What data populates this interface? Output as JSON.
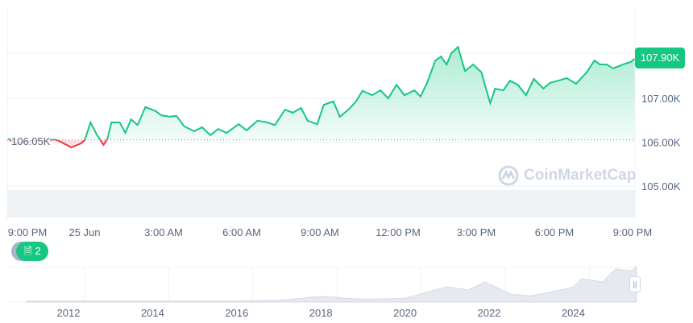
{
  "chart_data": {
    "type": "area",
    "y_ticks": [
      "107.00K",
      "106.00K",
      "105.00K"
    ],
    "ylim": [
      104.6,
      108.4
    ],
    "x_ticks": [
      "9:00 PM",
      "25 Jun",
      "3:00 AM",
      "6:00 AM",
      "9:00 AM",
      "12:00 PM",
      "3:00 PM",
      "6:00 PM",
      "9:00 PM"
    ],
    "baseline": 106.05,
    "baseline_label": "106.05K",
    "current_label": "107.90K",
    "colors": {
      "up": "#16c784",
      "down": "#ea3943"
    },
    "series": [
      [
        "21:02",
        106.08
      ],
      [
        "21:20",
        105.97
      ],
      [
        "21:58",
        106.03
      ],
      [
        "22:50",
        106.06
      ],
      [
        "23:02",
        106.01
      ],
      [
        "23:27",
        105.88
      ],
      [
        "23:49",
        105.97
      ],
      [
        "23:58",
        106.05
      ],
      [
        "00:11",
        106.45
      ],
      [
        "00:26",
        106.16
      ],
      [
        "00:41",
        105.94
      ],
      [
        "00:50",
        106.08
      ],
      [
        "00:59",
        106.45
      ],
      [
        "01:18",
        106.45
      ],
      [
        "01:31",
        106.21
      ],
      [
        "01:44",
        106.52
      ],
      [
        "01:59",
        106.39
      ],
      [
        "02:17",
        106.8
      ],
      [
        "02:40",
        106.71
      ],
      [
        "02:54",
        106.61
      ],
      [
        "03:13",
        106.58
      ],
      [
        "03:28",
        106.6
      ],
      [
        "03:46",
        106.36
      ],
      [
        "04:09",
        106.25
      ],
      [
        "04:27",
        106.34
      ],
      [
        "04:46",
        106.16
      ],
      [
        "05:04",
        106.3
      ],
      [
        "05:23",
        106.21
      ],
      [
        "05:51",
        106.41
      ],
      [
        "06:09",
        106.27
      ],
      [
        "06:34",
        106.49
      ],
      [
        "06:56",
        106.45
      ],
      [
        "07:14",
        106.39
      ],
      [
        "07:37",
        106.74
      ],
      [
        "07:55",
        106.67
      ],
      [
        "08:14",
        106.78
      ],
      [
        "08:29",
        106.49
      ],
      [
        "08:51",
        106.41
      ],
      [
        "09:06",
        106.85
      ],
      [
        "09:28",
        106.93
      ],
      [
        "09:43",
        106.58
      ],
      [
        "10:05",
        106.76
      ],
      [
        "10:20",
        106.93
      ],
      [
        "10:35",
        107.17
      ],
      [
        "10:57",
        107.07
      ],
      [
        "11:16",
        107.18
      ],
      [
        "11:34",
        107.0
      ],
      [
        "11:53",
        107.31
      ],
      [
        "12:11",
        107.07
      ],
      [
        "12:34",
        107.18
      ],
      [
        "12:48",
        107.04
      ],
      [
        "13:03",
        107.35
      ],
      [
        "13:22",
        107.86
      ],
      [
        "13:35",
        107.95
      ],
      [
        "13:48",
        107.77
      ],
      [
        "13:59",
        108.03
      ],
      [
        "14:14",
        108.17
      ],
      [
        "14:30",
        107.62
      ],
      [
        "14:49",
        107.77
      ],
      [
        "15:08",
        107.59
      ],
      [
        "15:17",
        107.26
      ],
      [
        "15:28",
        106.89
      ],
      [
        "15:39",
        107.22
      ],
      [
        "15:58",
        107.18
      ],
      [
        "16:13",
        107.4
      ],
      [
        "16:31",
        107.31
      ],
      [
        "16:50",
        107.07
      ],
      [
        "17:08",
        107.44
      ],
      [
        "17:30",
        107.22
      ],
      [
        "17:45",
        107.35
      ],
      [
        "18:04",
        107.4
      ],
      [
        "18:23",
        107.46
      ],
      [
        "18:45",
        107.33
      ],
      [
        "19:09",
        107.59
      ],
      [
        "19:27",
        107.86
      ],
      [
        "19:40",
        107.77
      ],
      [
        "19:55",
        107.77
      ],
      [
        "20:10",
        107.68
      ],
      [
        "20:32",
        107.77
      ],
      [
        "20:51",
        107.83
      ],
      [
        "20:59",
        107.9
      ]
    ],
    "navigator": {
      "x_ticks": [
        "2012",
        "2014",
        "2016",
        "2018",
        "2020",
        "2022",
        "2024"
      ],
      "series": [
        [
          2011,
          0
        ],
        [
          2013,
          1
        ],
        [
          2014,
          0.5
        ],
        [
          2016,
          0.5
        ],
        [
          2017,
          3
        ],
        [
          2018,
          15
        ],
        [
          2019,
          6
        ],
        [
          2020,
          9
        ],
        [
          2021,
          45
        ],
        [
          2021.5,
          35
        ],
        [
          2021.9,
          60
        ],
        [
          2022.5,
          22
        ],
        [
          2023,
          17
        ],
        [
          2024,
          43
        ],
        [
          2024.2,
          70
        ],
        [
          2024.7,
          60
        ],
        [
          2025,
          100
        ],
        [
          2025.4,
          95
        ],
        [
          2025.5,
          107
        ]
      ]
    }
  },
  "watermark": "CoinMarketCap",
  "news_count": "2",
  "icons": {
    "news": "document-icon",
    "handle": "drag-handle-icon",
    "logo": "coinmarketcap-logo"
  }
}
